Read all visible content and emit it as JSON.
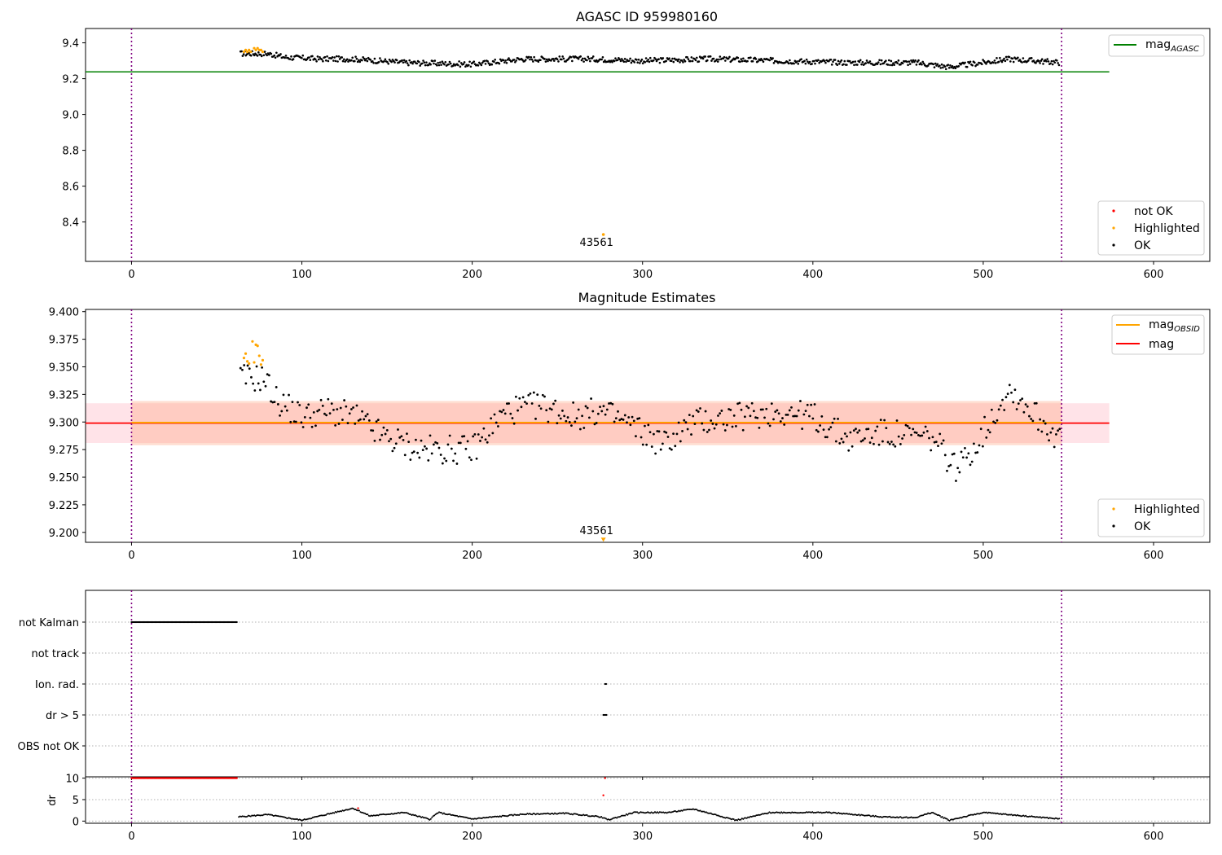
{
  "chart_data": [
    {
      "type": "scatter",
      "title": "AGASC ID 959980160",
      "xlim": [
        -27,
        633
      ],
      "ylim": [
        8.18,
        9.48
      ],
      "xticks": [
        0,
        100,
        200,
        300,
        400,
        500,
        600
      ],
      "yticks": [
        8.4,
        8.6,
        8.8,
        9.0,
        9.2,
        9.4
      ],
      "x_range": [
        64,
        545
      ],
      "vlines": [
        0,
        546
      ],
      "hlines": [
        {
          "name": "mag_AGASC",
          "y": 9.238,
          "x0": -27,
          "x1": 574,
          "color": "#008000"
        }
      ],
      "series": [
        {
          "name": "not OK",
          "color": "#ff0000",
          "values": []
        },
        {
          "name": "Highlighted",
          "color": "#ffa500",
          "x": [
            66,
            67,
            68,
            69,
            70,
            72,
            73,
            74,
            75,
            76,
            77
          ],
          "values": [
            9.35,
            9.36,
            9.35,
            9.36,
            9.35,
            9.37,
            9.36,
            9.37,
            9.36,
            9.36,
            9.35
          ]
        },
        {
          "name": "OK",
          "color": "#000000",
          "description_of_trend": [
            [
              64,
              9.34
            ],
            [
              80,
              9.34
            ],
            [
              90,
              9.32
            ],
            [
              110,
              9.31
            ],
            [
              130,
              9.31
            ],
            [
              160,
              9.29
            ],
            [
              200,
              9.28
            ],
            [
              230,
              9.31
            ],
            [
              270,
              9.31
            ],
            [
              300,
              9.3
            ],
            [
              340,
              9.31
            ],
            [
              380,
              9.3
            ],
            [
              420,
              9.29
            ],
            [
              460,
              9.29
            ],
            [
              480,
              9.265
            ],
            [
              500,
              9.29
            ],
            [
              515,
              9.31
            ],
            [
              545,
              9.29
            ]
          ]
        }
      ],
      "outlier": {
        "x": 277,
        "y": 8.33,
        "color": "#ffa500"
      },
      "annotations": [
        {
          "text": "43561",
          "x": 272,
          "y": 8.28
        }
      ],
      "legend_top": [
        "mag_AGASC"
      ],
      "legend_bottom": [
        "not OK",
        "Highlighted",
        "OK"
      ],
      "legend_placement": [
        "upper right",
        "lower right"
      ]
    },
    {
      "type": "scatter",
      "title": "Magnitude Estimates",
      "xlim": [
        -27,
        633
      ],
      "ylim": [
        9.191,
        9.402
      ],
      "xticks": [
        0,
        100,
        200,
        300,
        400,
        500,
        600
      ],
      "yticks": [
        9.2,
        9.225,
        9.25,
        9.275,
        9.3,
        9.325,
        9.35,
        9.375,
        9.4
      ],
      "vlines": [
        0,
        546
      ],
      "bands": [
        {
          "x0": -27,
          "x1": 574,
          "y0": 9.281,
          "y1": 9.317,
          "color": "#ffc0cb"
        },
        {
          "x0": 0,
          "x1": 546,
          "y0": 9.279,
          "y1": 9.319,
          "color": "#ffa07a"
        }
      ],
      "hlines": [
        {
          "name": "mag",
          "y": 9.299,
          "x0": -27,
          "x1": 574,
          "color": "#ff0000"
        },
        {
          "name": "mag_OBSID",
          "y": 9.2995,
          "x0": 0,
          "x1": 546,
          "color": "#ffa500"
        }
      ],
      "series": [
        {
          "name": "Highlighted",
          "color": "#ffa500",
          "x": [
            66,
            67,
            68,
            69,
            71,
            72,
            73,
            74,
            75,
            76,
            77
          ],
          "values": [
            9.358,
            9.362,
            9.355,
            9.353,
            9.373,
            9.354,
            9.37,
            9.369,
            9.36,
            9.352,
            9.356
          ]
        },
        {
          "name": "OK",
          "color": "#000000",
          "description_of_trend": [
            [
              64,
              9.34
            ],
            [
              78,
              9.34
            ],
            [
              85,
              9.32
            ],
            [
              100,
              9.305
            ],
            [
              115,
              9.31
            ],
            [
              130,
              9.305
            ],
            [
              150,
              9.285
            ],
            [
              170,
              9.275
            ],
            [
              200,
              9.275
            ],
            [
              220,
              9.31
            ],
            [
              240,
              9.315
            ],
            [
              260,
              9.305
            ],
            [
              275,
              9.31
            ],
            [
              290,
              9.3
            ],
            [
              312,
              9.28
            ],
            [
              330,
              9.3
            ],
            [
              360,
              9.305
            ],
            [
              380,
              9.31
            ],
            [
              400,
              9.305
            ],
            [
              420,
              9.285
            ],
            [
              440,
              9.29
            ],
            [
              470,
              9.285
            ],
            [
              485,
              9.257
            ],
            [
              500,
              9.29
            ],
            [
              515,
              9.33
            ],
            [
              545,
              9.285
            ]
          ]
        }
      ],
      "outlier": {
        "x": 277,
        "y": 9.193,
        "color": "#ffa500",
        "marker": "triangle-down"
      },
      "annotations": [
        {
          "text": "43561",
          "x": 272,
          "y": 9.2
        }
      ],
      "legend_top": [
        "mag_OBSID",
        "mag"
      ],
      "legend_bottom": [
        "Highlighted",
        "OK"
      ],
      "legend_placement": [
        "upper right",
        "lower right"
      ]
    },
    {
      "type": "scatter",
      "xlim": [
        -27,
        633
      ],
      "xticks": [
        0,
        100,
        200,
        300,
        400,
        500,
        600
      ],
      "vlines": [
        0,
        546
      ],
      "flag_rows": [
        "not Kalman",
        "not track",
        "Ion. rad.",
        "dr > 5",
        "OBS not OK"
      ],
      "flags": [
        {
          "row": "not Kalman",
          "x0": 0,
          "x1": 62
        },
        {
          "row": "Ion. rad.",
          "x0": 278,
          "x1": 279
        },
        {
          "row": "dr > 5",
          "x0": 277,
          "x1": 279
        }
      ]
    },
    {
      "type": "scatter",
      "ylabel": "dr",
      "xlim": [
        -27,
        633
      ],
      "ylim": [
        -0.5,
        10.3
      ],
      "yticks": [
        0,
        5,
        10
      ],
      "xticks": [
        0,
        100,
        200,
        300,
        400,
        500,
        600
      ],
      "vlines": [
        0,
        546
      ],
      "series": [
        {
          "name": "red",
          "color": "#ff0000",
          "points": [
            [
              0,
              10
            ],
            [
              62,
              10
            ],
            [
              133,
              3
            ],
            [
              278,
              10
            ],
            [
              277,
              6
            ]
          ]
        },
        {
          "name": "black",
          "color": "#000000",
          "description_of_trend": [
            [
              63,
              1
            ],
            [
              80,
              1.5
            ],
            [
              100,
              0.2
            ],
            [
              130,
              3
            ],
            [
              140,
              1.2
            ],
            [
              160,
              2
            ],
            [
              175,
              0.4
            ],
            [
              180,
              2
            ],
            [
              200,
              0.5
            ],
            [
              230,
              1.6
            ],
            [
              255,
              1.8
            ],
            [
              275,
              1
            ],
            [
              280,
              0.3
            ],
            [
              295,
              2
            ],
            [
              315,
              2
            ],
            [
              330,
              2.8
            ],
            [
              355,
              0.2
            ],
            [
              375,
              2
            ],
            [
              410,
              2
            ],
            [
              440,
              1
            ],
            [
              460,
              0.8
            ],
            [
              470,
              2
            ],
            [
              480,
              0.2
            ],
            [
              500,
              2
            ],
            [
              545,
              0.5
            ]
          ]
        }
      ]
    }
  ]
}
